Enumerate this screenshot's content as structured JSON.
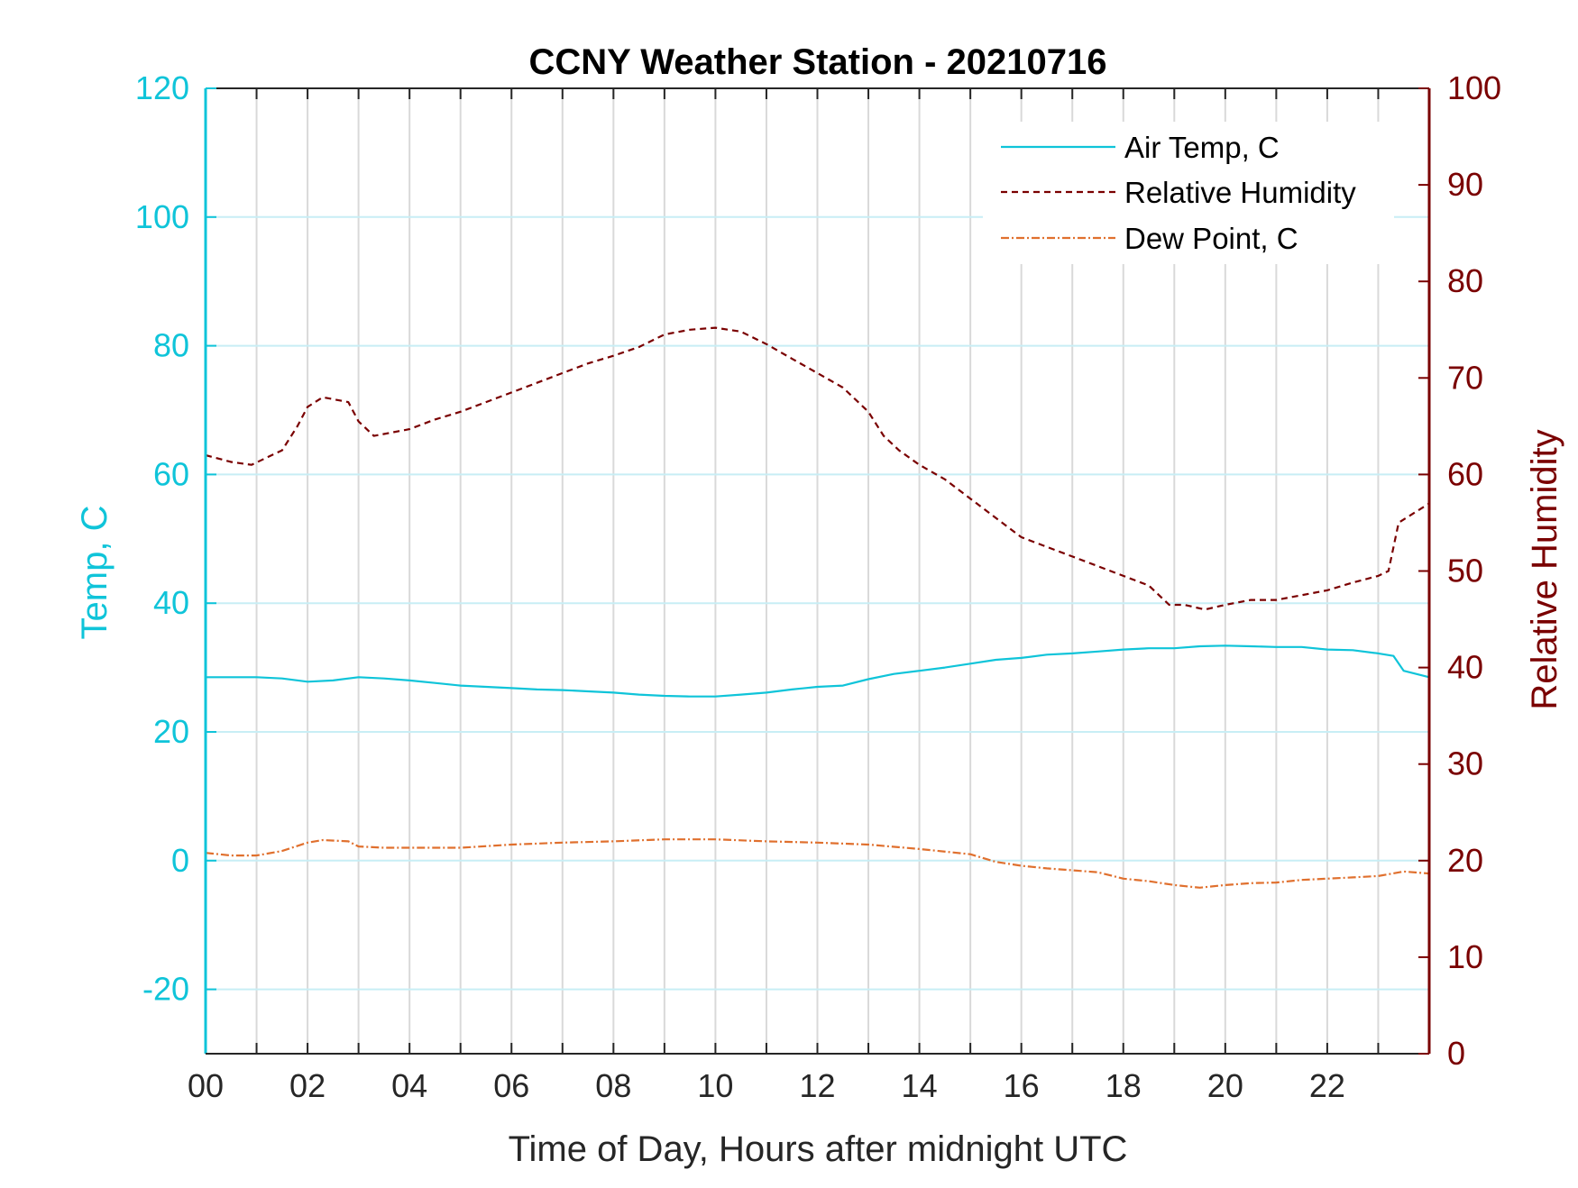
{
  "chart_data": {
    "type": "line",
    "title": "CCNY Weather Station - 20210716",
    "xlabel": "Time of Day, Hours after midnight UTC",
    "ylabel_left": "Temp, C",
    "ylabel_right": "Relative Humidity",
    "xlim": [
      0,
      24
    ],
    "ylim_left": [
      -30,
      120
    ],
    "ylim_right": [
      0,
      100
    ],
    "x_ticks": [
      0,
      2,
      4,
      6,
      8,
      10,
      12,
      14,
      16,
      18,
      20,
      22
    ],
    "x_tick_labels": [
      "00",
      "02",
      "04",
      "06",
      "08",
      "10",
      "12",
      "14",
      "16",
      "18",
      "20",
      "22"
    ],
    "y_left_ticks": [
      -20,
      0,
      20,
      40,
      60,
      80,
      100,
      120
    ],
    "y_right_ticks": [
      0,
      10,
      20,
      30,
      40,
      50,
      60,
      70,
      80,
      90,
      100
    ],
    "grid": true,
    "legend_position": "top-right",
    "colors": {
      "left_axis": "#0fc4d9",
      "right_axis": "#7a0000",
      "grid_vertical": "#d9d9d9",
      "grid_horizontal": "#c8eef5"
    },
    "series": [
      {
        "name": "Air Temp, C",
        "axis": "left",
        "color": "#0fc4d9",
        "style": "solid",
        "x": [
          0,
          0.5,
          1,
          1.5,
          2,
          2.5,
          3,
          3.5,
          4,
          4.5,
          5,
          5.5,
          6,
          6.5,
          7,
          7.5,
          8,
          8.5,
          9,
          9.5,
          10,
          10.5,
          11,
          11.5,
          12,
          12.5,
          13,
          13.5,
          14,
          14.5,
          15,
          15.5,
          16,
          16.5,
          17,
          17.5,
          18,
          18.5,
          19,
          19.5,
          20,
          20.5,
          21,
          21.5,
          22,
          22.5,
          23,
          23.3,
          23.5,
          24
        ],
        "y": [
          28.5,
          28.5,
          28.5,
          28.3,
          27.8,
          28.0,
          28.5,
          28.3,
          28.0,
          27.6,
          27.2,
          27.0,
          26.8,
          26.6,
          26.5,
          26.3,
          26.1,
          25.8,
          25.6,
          25.5,
          25.5,
          25.8,
          26.1,
          26.6,
          27.0,
          27.2,
          28.2,
          29.0,
          29.5,
          30.0,
          30.6,
          31.2,
          31.5,
          32.0,
          32.2,
          32.5,
          32.8,
          33.0,
          33.0,
          33.3,
          33.4,
          33.3,
          33.2,
          33.2,
          32.8,
          32.7,
          32.2,
          31.8,
          29.5,
          28.5
        ]
      },
      {
        "name": "Relative Humidity",
        "axis": "right",
        "color": "#7a0000",
        "style": "dashed",
        "x": [
          0,
          0.5,
          0.9,
          1.5,
          1.8,
          2.0,
          2.3,
          2.8,
          3.0,
          3.3,
          4.0,
          4.5,
          5.0,
          5.5,
          6.0,
          6.5,
          7.0,
          7.5,
          8.0,
          8.5,
          9.0,
          9.5,
          10.0,
          10.5,
          11.0,
          11.5,
          12.0,
          12.5,
          13.0,
          13.3,
          13.6,
          14.0,
          14.5,
          15.0,
          15.5,
          16.0,
          16.5,
          17.0,
          17.5,
          18.0,
          18.5,
          18.9,
          19.2,
          19.6,
          20.0,
          20.5,
          21.0,
          21.5,
          22.0,
          22.5,
          23.0,
          23.2,
          23.4,
          23.7,
          24.0
        ],
        "y": [
          62.0,
          61.3,
          61.0,
          62.5,
          65.0,
          67.0,
          68.0,
          67.5,
          65.5,
          64.0,
          64.7,
          65.7,
          66.5,
          67.5,
          68.5,
          69.5,
          70.5,
          71.5,
          72.3,
          73.2,
          74.5,
          75.0,
          75.2,
          74.8,
          73.5,
          72.0,
          70.5,
          69.0,
          66.5,
          64.0,
          62.5,
          61.0,
          59.5,
          57.5,
          55.5,
          53.5,
          52.5,
          51.5,
          50.5,
          49.5,
          48.5,
          46.5,
          46.5,
          46.0,
          46.5,
          47.0,
          47.0,
          47.5,
          48.0,
          48.8,
          49.5,
          50.0,
          55.0,
          56.0,
          57.0
        ]
      },
      {
        "name": "Dew Point, C",
        "axis": "left",
        "color": "#e0702e",
        "style": "dashdot",
        "x": [
          0,
          0.5,
          1.0,
          1.5,
          2.0,
          2.3,
          2.8,
          3.0,
          3.5,
          4.0,
          5.0,
          6.0,
          7.0,
          8.0,
          9.0,
          10.0,
          11.0,
          12.0,
          13.0,
          14.0,
          15.0,
          15.5,
          16.0,
          16.5,
          17.0,
          17.5,
          18.0,
          18.5,
          19.0,
          19.5,
          20.0,
          20.5,
          21.0,
          21.5,
          22.0,
          22.5,
          23.0,
          23.5,
          24.0
        ],
        "y": [
          1.2,
          0.8,
          0.8,
          1.5,
          2.8,
          3.2,
          3.0,
          2.2,
          2.0,
          2.0,
          2.0,
          2.5,
          2.8,
          3.0,
          3.3,
          3.3,
          3.0,
          2.8,
          2.5,
          1.8,
          1.0,
          -0.2,
          -0.8,
          -1.2,
          -1.5,
          -1.8,
          -2.8,
          -3.2,
          -3.8,
          -4.2,
          -3.8,
          -3.5,
          -3.4,
          -3.0,
          -2.8,
          -2.6,
          -2.4,
          -1.7,
          -2.0
        ]
      }
    ]
  }
}
